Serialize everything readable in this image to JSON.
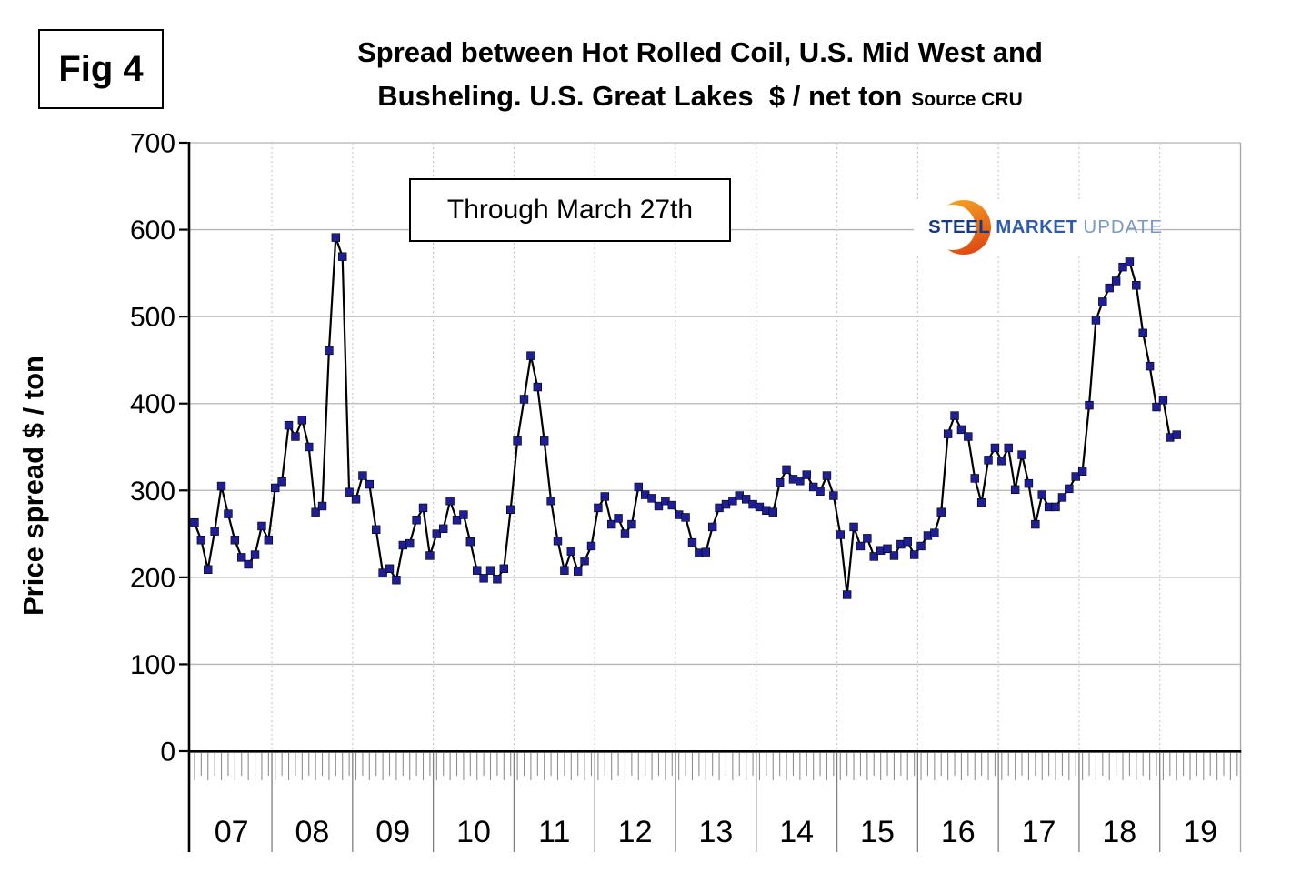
{
  "figure_label": "Fig 4",
  "title": {
    "line1": "Spread between Hot Rolled Coil, U.S. Mid West and",
    "line2": "Busheling. U.S. Great Lakes  $ / net ton",
    "source": "Source CRU"
  },
  "annotation": {
    "text": "Through March 27th"
  },
  "y_axis_title": "Price spread $ / ton",
  "logo": {
    "steel": "STEEL",
    "market": "MARKET",
    "update": "UPDATE"
  },
  "colors": {
    "line": "#000000",
    "marker": "#1e1e96",
    "grid": "#b5b5b5",
    "year_grid_dotted": "#cacaca",
    "minor_tick": "#8f8f8f",
    "year_separator": "#7f7f7f",
    "plot_border": "#a8a8a8",
    "axis": "#000000",
    "logo_steel": "#153a85",
    "logo_market": "#2d5cae",
    "logo_update": "#7b99c8",
    "logo_orange_top": "#f6a325",
    "logo_orange_bottom": "#df4a12"
  },
  "chart_data": {
    "type": "line",
    "title": "Spread between Hot Rolled Coil, U.S. Mid West and Busheling. U.S. Great Lakes $ / net ton",
    "ylabel": "Price spread $ / ton",
    "unit": "$ / net ton",
    "ylim": [
      0,
      700
    ],
    "yticks": [
      0,
      100,
      200,
      300,
      400,
      500,
      600,
      700
    ],
    "x_year_labels": [
      "07",
      "08",
      "09",
      "10",
      "11",
      "12",
      "13",
      "14",
      "15",
      "16",
      "17",
      "18",
      "19"
    ],
    "frequency": "monthly",
    "coverage_note": "Monthly, Jan 2007 through March 27th 2019",
    "grid": "horizontal solid, vertical dotted at year boundaries",
    "legend_position": "none",
    "marker": "square",
    "series": [
      {
        "name": "Hot Rolled Coil minus Busheling spread",
        "values": [
          263,
          243,
          209,
          253,
          305,
          273,
          243,
          223,
          215,
          226,
          259,
          243,
          303,
          310,
          375,
          362,
          381,
          350,
          275,
          282,
          461,
          591,
          569,
          298,
          290,
          317,
          307,
          255,
          205,
          210,
          197,
          237,
          239,
          266,
          280,
          225,
          250,
          256,
          288,
          266,
          272,
          241,
          208,
          199,
          208,
          198,
          210,
          278,
          357,
          405,
          455,
          419,
          357,
          288,
          242,
          208,
          230,
          207,
          219,
          236,
          280,
          293,
          261,
          268,
          250,
          261,
          304,
          295,
          291,
          282,
          288,
          283,
          272,
          269,
          240,
          228,
          229,
          258,
          280,
          284,
          288,
          294,
          290,
          284,
          281,
          277,
          275,
          309,
          324,
          313,
          311,
          318,
          304,
          299,
          317,
          294,
          249,
          180,
          258,
          236,
          245,
          224,
          231,
          233,
          225,
          238,
          241,
          226,
          236,
          248,
          251,
          275,
          365,
          386,
          370,
          362,
          314,
          286,
          335,
          349,
          334,
          349,
          301,
          341,
          308,
          261,
          295,
          281,
          281,
          292,
          302,
          316,
          322,
          398,
          496,
          517,
          533,
          541,
          557,
          563,
          536,
          481,
          443,
          396,
          404,
          361,
          364
        ]
      }
    ]
  }
}
